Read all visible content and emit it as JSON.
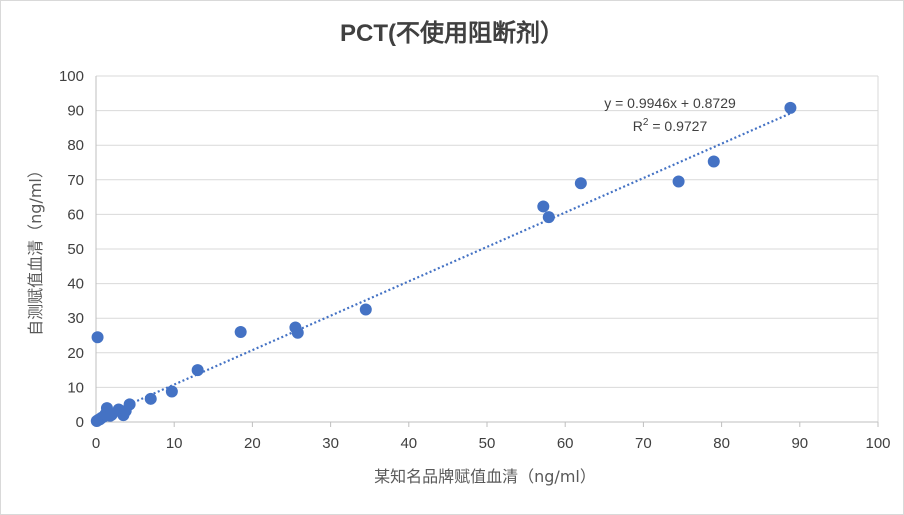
{
  "chart_data": {
    "type": "scatter",
    "title": "PCT(不使用阻断剂）",
    "xlabel": "某知名品牌赋值血清（ng/ml）",
    "ylabel": "自测赋值血清（ng/ml）",
    "xlim": [
      0,
      100
    ],
    "ylim": [
      0,
      100
    ],
    "x_ticks": [
      "0",
      "10",
      "20",
      "30",
      "40",
      "50",
      "60",
      "70",
      "80",
      "90",
      "100"
    ],
    "y_ticks": [
      "0",
      "10",
      "20",
      "30",
      "40",
      "50",
      "60",
      "70",
      "80",
      "90",
      "100"
    ],
    "grid": "horizontal",
    "points": [
      {
        "x": 0.2,
        "y": 24.5
      },
      {
        "x": 0.1,
        "y": 0.3
      },
      {
        "x": 0.3,
        "y": 0.6
      },
      {
        "x": 0.5,
        "y": 0.8
      },
      {
        "x": 0.7,
        "y": 1.2
      },
      {
        "x": 1.0,
        "y": 1.6
      },
      {
        "x": 1.2,
        "y": 2.2
      },
      {
        "x": 1.4,
        "y": 4.0
      },
      {
        "x": 1.6,
        "y": 2.6
      },
      {
        "x": 1.8,
        "y": 1.8
      },
      {
        "x": 2.0,
        "y": 2.1
      },
      {
        "x": 2.9,
        "y": 3.6
      },
      {
        "x": 3.5,
        "y": 2.0
      },
      {
        "x": 3.8,
        "y": 3.2
      },
      {
        "x": 4.3,
        "y": 5.1
      },
      {
        "x": 7.0,
        "y": 6.7
      },
      {
        "x": 9.7,
        "y": 8.8
      },
      {
        "x": 13.0,
        "y": 15.0
      },
      {
        "x": 18.5,
        "y": 26.0
      },
      {
        "x": 25.5,
        "y": 27.3
      },
      {
        "x": 25.8,
        "y": 25.8
      },
      {
        "x": 34.5,
        "y": 32.5
      },
      {
        "x": 57.2,
        "y": 62.3
      },
      {
        "x": 57.9,
        "y": 59.2
      },
      {
        "x": 62.0,
        "y": 69.0
      },
      {
        "x": 74.5,
        "y": 69.5
      },
      {
        "x": 79.0,
        "y": 75.3
      },
      {
        "x": 88.8,
        "y": 90.8
      }
    ],
    "trendline": {
      "type": "linear",
      "style": "dotted",
      "slope": 0.9946,
      "intercept": 0.8729,
      "x_range": [
        0,
        88.8
      ],
      "equation_label": "y = 0.9946x + 0.8729",
      "r2_label": "R",
      "r2_sup": "2",
      "r2_value": " = 0.9727"
    },
    "colors": {
      "marker": "#4472c4",
      "trendline": "#4472c4",
      "grid": "#d9d9d9",
      "axis": "#bfbfbf"
    }
  }
}
